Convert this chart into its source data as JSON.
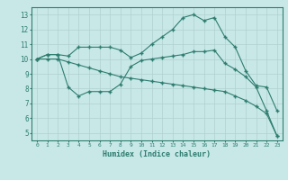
{
  "xlabel": "Humidex (Indice chaleur)",
  "bg_color": "#c8e8e8",
  "line_color": "#2e7d6e",
  "grid_color": "#b0d0d0",
  "xlim": [
    -0.5,
    23.5
  ],
  "ylim": [
    4.5,
    13.5
  ],
  "xticks": [
    0,
    1,
    2,
    3,
    4,
    5,
    6,
    7,
    8,
    9,
    10,
    11,
    12,
    13,
    14,
    15,
    16,
    17,
    18,
    19,
    20,
    21,
    22,
    23
  ],
  "yticks": [
    5,
    6,
    7,
    8,
    9,
    10,
    11,
    12,
    13
  ],
  "line1_x": [
    0,
    1,
    2,
    3,
    4,
    5,
    6,
    7,
    8,
    9,
    10,
    11,
    12,
    13,
    14,
    15,
    16,
    17,
    18,
    19,
    20,
    21,
    22,
    23
  ],
  "line1_y": [
    10.0,
    10.3,
    10.3,
    10.2,
    10.8,
    10.8,
    10.8,
    10.8,
    10.6,
    10.1,
    10.4,
    11.0,
    11.5,
    12.0,
    12.8,
    13.0,
    12.6,
    12.8,
    11.5,
    10.8,
    9.2,
    8.2,
    8.1,
    6.5
  ],
  "line2_x": [
    0,
    1,
    2,
    3,
    4,
    5,
    6,
    7,
    8,
    9,
    10,
    11,
    12,
    13,
    14,
    15,
    16,
    17,
    18,
    19,
    20,
    21,
    22,
    23
  ],
  "line2_y": [
    10.0,
    10.3,
    10.3,
    8.1,
    7.5,
    7.8,
    7.8,
    7.8,
    8.3,
    9.5,
    9.9,
    10.0,
    10.1,
    10.2,
    10.3,
    10.5,
    10.5,
    10.6,
    9.7,
    9.3,
    8.8,
    8.1,
    6.5,
    4.8
  ],
  "line3_x": [
    0,
    1,
    2,
    3,
    4,
    5,
    6,
    7,
    8,
    9,
    10,
    11,
    12,
    13,
    14,
    15,
    16,
    17,
    18,
    19,
    20,
    21,
    22,
    23
  ],
  "line3_y": [
    10.0,
    10.0,
    10.0,
    9.8,
    9.6,
    9.4,
    9.2,
    9.0,
    8.8,
    8.7,
    8.6,
    8.5,
    8.4,
    8.3,
    8.2,
    8.1,
    8.0,
    7.9,
    7.8,
    7.5,
    7.2,
    6.8,
    6.3,
    4.8
  ]
}
